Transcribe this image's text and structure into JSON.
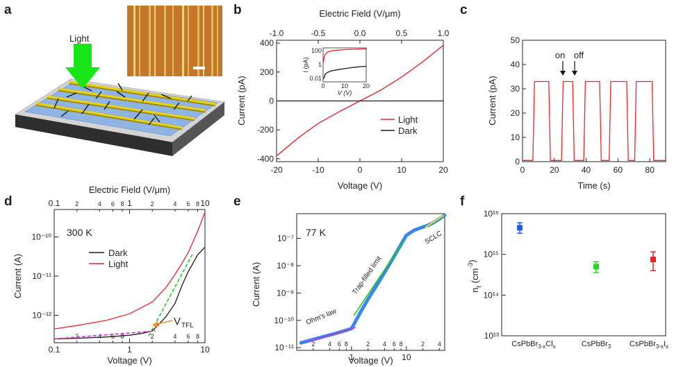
{
  "panel_letters": [
    "a",
    "b",
    "c",
    "d",
    "e",
    "f"
  ],
  "colors": {
    "light": "#e8262b",
    "dark": "#1a1a1a",
    "arrow_green": "#19e619",
    "ohm": "#cc33cc",
    "tfl_green": "#1fcc1f",
    "sclc": "#e6e61a",
    "scatter_blue": "#1f5fe6",
    "vtfl_orange": "#f08c1f",
    "data_blue": "#3a86f0"
  },
  "panel_a": {
    "light_label": "Light",
    "icon": "device-schematic-icon",
    "inset_icon": "micrograph-icon"
  },
  "chart_data": [
    {
      "id": "b",
      "type": "line",
      "xlabel": "Voltage (V)",
      "ylabel": "Current (pA)",
      "x2label": "Electric Field (V/μm)",
      "xlim": [
        -20,
        20
      ],
      "ylim": [
        -420,
        420
      ],
      "x2lim": [
        -1.0,
        1.0
      ],
      "xticks": [
        "-20",
        "-10",
        "0",
        "10",
        "20"
      ],
      "yticks": [
        "-400",
        "-200",
        "0",
        "200",
        "400"
      ],
      "x2ticks": [
        "-1.0",
        "-0.5",
        "0.0",
        "0.5",
        "1.0"
      ],
      "legend": [
        "Light",
        "Dark"
      ],
      "legend_position": "bottom-right",
      "series": [
        {
          "name": "Light",
          "x": [
            -20,
            -15,
            -10,
            -5,
            0,
            5,
            10,
            15,
            20
          ],
          "y": [
            -380,
            -260,
            -155,
            -75,
            0,
            75,
            165,
            270,
            385
          ]
        },
        {
          "name": "Dark",
          "x": [
            -20,
            20
          ],
          "y": [
            0,
            0
          ]
        }
      ],
      "inset": {
        "ylabel": "I (pA)",
        "xlabel": "V (V)",
        "xticks": [
          "0",
          "10",
          "20"
        ],
        "yticks": [
          "0.01",
          "1",
          "100"
        ],
        "xlim": [
          0,
          20
        ],
        "ylim_log": [
          0.003,
          250
        ],
        "series": [
          {
            "name": "Light",
            "x": [
              0.2,
              0.5,
              1,
              2,
              4,
              7,
              10,
              15,
              20
            ],
            "y": [
              2,
              12,
              30,
              60,
              95,
              120,
              140,
              160,
              180
            ]
          },
          {
            "name": "Dark",
            "x": [
              0.2,
              0.5,
              1,
              2,
              4,
              7,
              10,
              15,
              20
            ],
            "y": [
              0.008,
              0.015,
              0.04,
              0.07,
              0.12,
              0.18,
              0.25,
              0.4,
              0.55
            ]
          }
        ]
      }
    },
    {
      "id": "c",
      "type": "line",
      "xlabel": "Time (s)",
      "ylabel": "Current (pA)",
      "xlim": [
        0,
        90
      ],
      "ylim": [
        0,
        50
      ],
      "xticks": [
        "0",
        "20",
        "40",
        "60",
        "80"
      ],
      "yticks": [
        "0",
        "10",
        "20",
        "30",
        "40",
        "50"
      ],
      "annotations": [
        "on",
        "off"
      ],
      "series": [
        {
          "name": "Light",
          "x": [
            0,
            6.5,
            7.5,
            16.5,
            17.5,
            24.5,
            25.5,
            31.5,
            32.5,
            38.5,
            39.5,
            48.5,
            49.5,
            54.5,
            55.5,
            65.5,
            66.5,
            70.5,
            71.5,
            81.5,
            82.5,
            90
          ],
          "y": [
            0.5,
            0.5,
            33,
            33,
            0.5,
            0.5,
            33,
            33,
            0.5,
            0.5,
            33,
            33,
            0.5,
            0.5,
            33,
            33,
            0.5,
            0.5,
            33,
            33,
            0.5,
            0.5
          ]
        }
      ]
    },
    {
      "id": "d",
      "type": "line",
      "xlabel": "Voltage (V)",
      "ylabel": "Current (A)",
      "x2label": "Electric Field (V/μm)",
      "xscale": "log",
      "yscale": "log",
      "xlim": [
        0.1,
        10
      ],
      "ylim": [
        2e-13,
        5e-10
      ],
      "x2lim": [
        0.1,
        10
      ],
      "xticks": [
        "0.1",
        "1",
        "10"
      ],
      "xticks_minor": [
        "2",
        "4",
        "6",
        "8",
        "2",
        "4",
        "6",
        "8"
      ],
      "x2ticks": [
        "0.1",
        "1",
        "10"
      ],
      "x2ticks_minor": [
        "2",
        "4",
        "6",
        "8",
        "2",
        "4",
        "6",
        "8"
      ],
      "yticks": [
        "10⁻¹²",
        "10⁻¹¹",
        "10⁻¹⁰"
      ],
      "temperature_label": "300 K",
      "annotation": "V",
      "annotation_sub": "TFL",
      "legend": [
        "Dark",
        "Light"
      ],
      "legend_position": "center",
      "series": [
        {
          "name": "Dark",
          "x": [
            0.1,
            0.2,
            0.5,
            1,
            1.5,
            2,
            3,
            4,
            5,
            6,
            8,
            10
          ],
          "y": [
            2.5e-13,
            2.6e-13,
            2.8e-13,
            3.1e-13,
            3.5e-13,
            4e-13,
            9e-13,
            2e-12,
            6e-12,
            1.3e-11,
            3.5e-11,
            5.5e-11
          ]
        },
        {
          "name": "Light",
          "x": [
            0.1,
            0.2,
            0.5,
            1,
            2,
            3,
            4,
            5,
            6,
            8,
            10
          ],
          "y": [
            4.5e-13,
            5.5e-13,
            7.5e-13,
            1.1e-12,
            2.2e-12,
            5e-12,
            1.1e-11,
            2.2e-11,
            4e-11,
            1.4e-10,
            4.3e-10
          ]
        }
      ]
    },
    {
      "id": "e",
      "type": "scatter",
      "xlabel": "Voltage (V)",
      "ylabel": "Current (A)",
      "xscale": "log",
      "yscale": "log",
      "xlim": [
        0.1,
        50
      ],
      "ylim": [
        8e-12,
        8e-07
      ],
      "xticks": [
        "1",
        "10"
      ],
      "xticks_minor": [
        "2",
        "4",
        "6",
        "8",
        "2",
        "4",
        "6",
        "8",
        "2",
        "4"
      ],
      "yticks": [
        "10⁻¹¹",
        "10⁻¹⁰",
        "10⁻⁹",
        "10⁻⁸",
        "10⁻⁷"
      ],
      "temperature_label": "77 K",
      "region_labels": [
        "Ohm's law",
        "Trap-filled limit",
        "SCLC"
      ],
      "series": [
        {
          "name": "data",
          "x": [
            0.12,
            0.2,
            0.3,
            0.5,
            0.7,
            1,
            1.5,
            2,
            3,
            5,
            8,
            10,
            14,
            20,
            25,
            30,
            40,
            50
          ],
          "y": [
            1.5e-11,
            2e-11,
            2.5e-11,
            3.3e-11,
            4e-11,
            5e-11,
            2.2e-10,
            6e-10,
            2.2e-09,
            1.2e-08,
            6e-08,
            1.3e-07,
            2e-07,
            2.6e-07,
            3e-07,
            3.6e-07,
            5.2e-07,
            7e-07
          ]
        }
      ]
    },
    {
      "id": "f",
      "type": "scatter",
      "ylabel": "nₜ (cm⁻³)",
      "ylabel_main": "n",
      "ylabel_sub": "t",
      "ylabel_unit": " (cm",
      "ylabel_sup": "-3",
      "ylabel_close": ")",
      "yscale": "log",
      "ylim": [
        10000000000000.0,
        1e+16
      ],
      "yticks": [
        "10¹³",
        "10¹⁴",
        "10¹⁵",
        "10¹⁶"
      ],
      "categories": [
        "CsPbBr3-xClx",
        "CsPbBr3",
        "CsPbBr3-xIx"
      ],
      "points": [
        {
          "label": "CsPbBr3-xClx",
          "value": 4500000000000000.0,
          "err_low": 3300000000000000.0,
          "err_high": 6000000000000000.0,
          "color": "#1f5fe6"
        },
        {
          "label": "CsPbBr3",
          "value": 500000000000000.0,
          "err_low": 360000000000000.0,
          "err_high": 660000000000000.0,
          "color": "#26d926"
        },
        {
          "label": "CsPbBr3-xIx",
          "value": 750000000000000.0,
          "err_low": 400000000000000.0,
          "err_high": 1150000000000000.0,
          "color": "#e62626"
        }
      ]
    }
  ]
}
